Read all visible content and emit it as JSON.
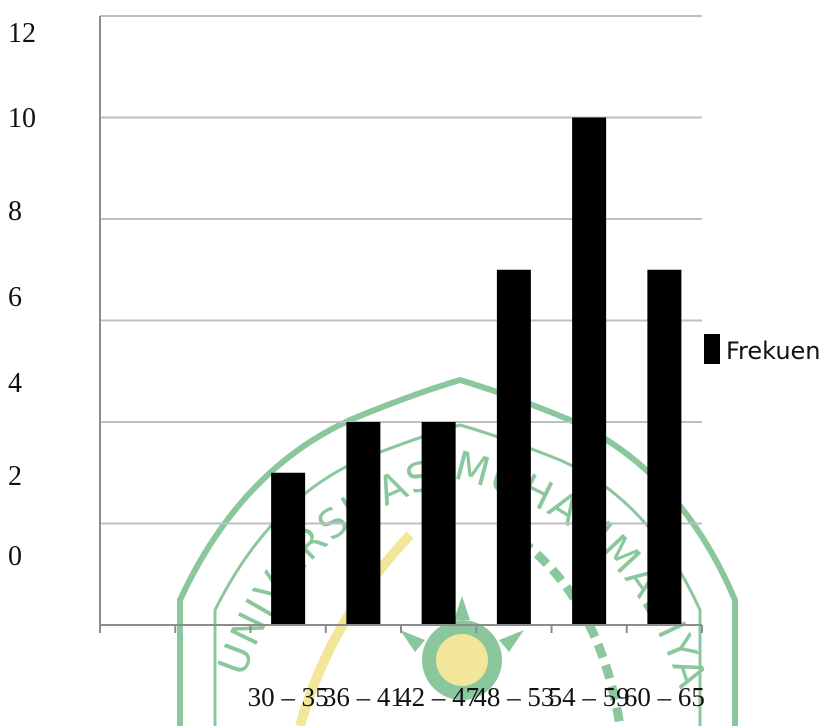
{
  "chart_data": {
    "type": "bar",
    "categories": [
      "",
      "",
      "30 – 35",
      "36 – 41",
      "42 – 47",
      "48 – 53",
      "54 – 59",
      "60 – 65"
    ],
    "series": [
      {
        "name": "Frekuensi",
        "values": [
          null,
          null,
          3,
          4,
          4,
          7,
          10,
          7
        ]
      }
    ],
    "title": "",
    "xlabel": "",
    "ylabel": "",
    "ylim": [
      0,
      12
    ],
    "yticks": [
      "0",
      "2",
      "4",
      "6",
      "8",
      "10",
      "12"
    ],
    "grid": true,
    "legend_position": "right",
    "colors": {
      "bar": "#000000",
      "grid": "#bfbfbf",
      "axis": "#8c8c8c"
    }
  },
  "watermark": {
    "text": "UNIVERSITAS MUHAMMADIYAH",
    "color": "#2e9a4e",
    "accent": "#e8d24a"
  }
}
